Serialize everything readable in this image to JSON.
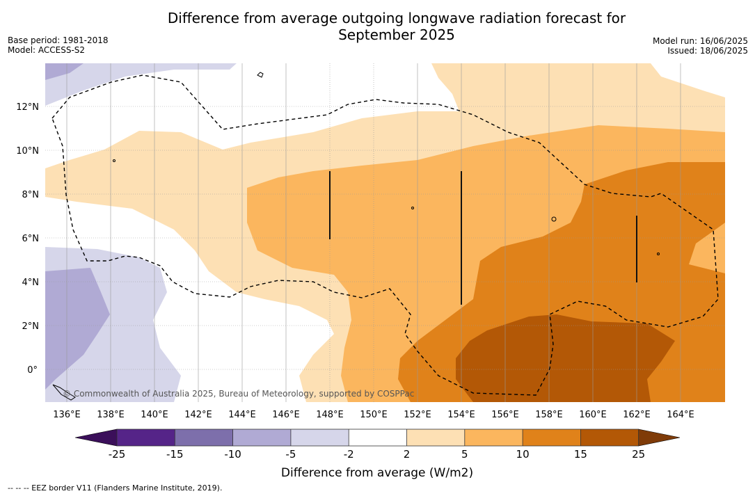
{
  "title_line1": "Difference from average outgoing longwave radiation forecast for",
  "title_line2": "September 2025",
  "meta_left": {
    "base_period": "Base period: 1981-2018",
    "model": "Model: ACCESS-S2"
  },
  "meta_right": {
    "model_run": "Model run: 16/06/2025",
    "issued": "Issued: 18/06/2025"
  },
  "map": {
    "lon_labels": [
      "136°E",
      "138°E",
      "140°E",
      "142°E",
      "144°E",
      "146°E",
      "148°E",
      "150°E",
      "152°E",
      "154°E",
      "156°E",
      "158°E",
      "160°E",
      "162°E",
      "164°E"
    ],
    "lat_labels": [
      "12°N",
      "10°N",
      "8°N",
      "6°N",
      "4°N",
      "2°N",
      "0°"
    ],
    "copyright": "© Commonwealth of Australia 2025, Bureau of Meteorology, supported by COSPPac"
  },
  "colorbar": {
    "label": "Difference from average (W/m2)",
    "tick_labels": [
      "-25",
      "-15",
      "-10",
      "-5",
      "-2",
      "2",
      "5",
      "10",
      "15",
      "25"
    ],
    "colors": [
      "#3b0f5a",
      "#552488",
      "#7d6fab",
      "#b0aad4",
      "#d6d6ea",
      "#ffffff",
      "#fde0b4",
      "#fbb65e",
      "#e0821a",
      "#b35806",
      "#7f3b08"
    ]
  },
  "colors": {
    "low_1": "#d6d6ea",
    "low_2": "#b0aad4",
    "neutral": "#ffffff",
    "high_1": "#fde0b4",
    "high_2": "#fbb65e",
    "high_3": "#e0821a",
    "high_4": "#b35806"
  },
  "legend_note": "--  --  -- EEZ border V11 (Flanders Marine Institute, 2019)."
}
